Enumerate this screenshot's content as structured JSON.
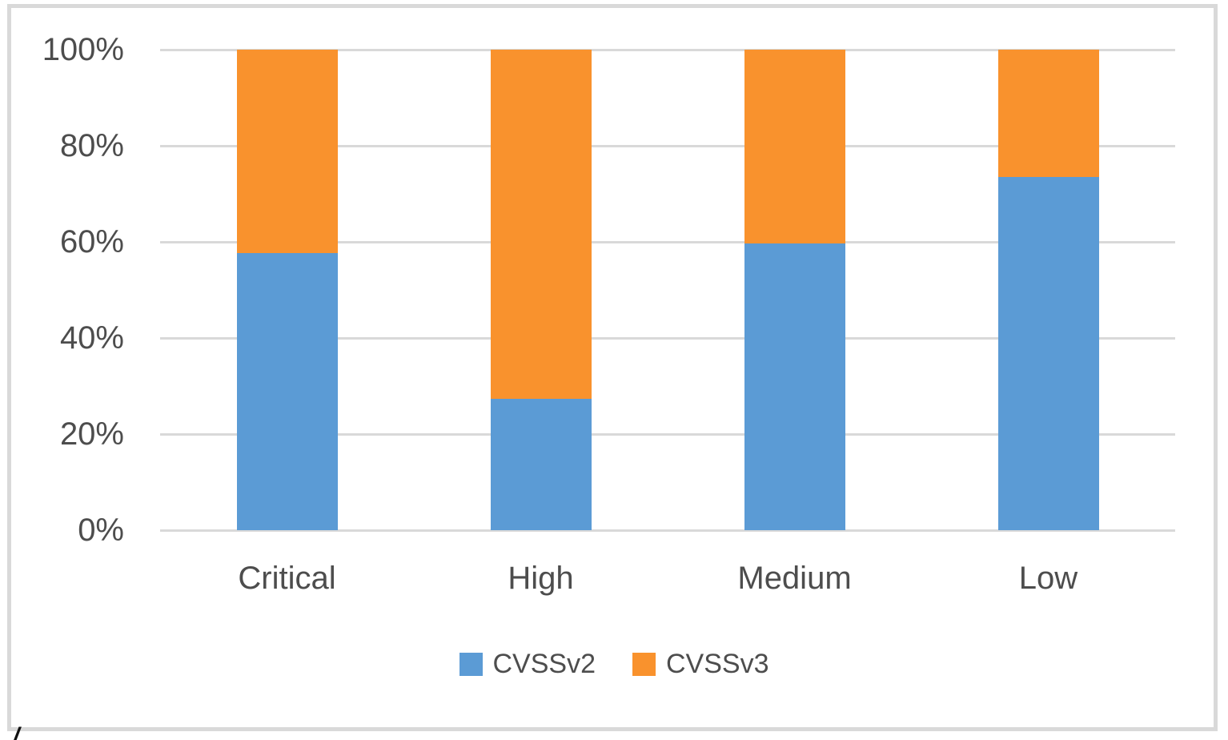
{
  "page": {
    "background": "#ffffff",
    "border_color": "#d9d9d9",
    "corner_mark": "/"
  },
  "chart_data": {
    "type": "bar",
    "subtype": "stacked-100-percent",
    "title": "",
    "xlabel": "",
    "ylabel": "",
    "categories": [
      "Critical",
      "High",
      "Medium",
      "Low"
    ],
    "series": [
      {
        "name": "CVSSv2",
        "color": "#5B9BD5",
        "values": [
          57.7,
          27.3,
          59.7,
          73.5
        ]
      },
      {
        "name": "CVSSv3",
        "color": "#F9922D",
        "values": [
          42.3,
          72.7,
          40.3,
          26.5
        ]
      }
    ],
    "ylim": [
      0,
      100
    ],
    "yticks": [
      "0%",
      "20%",
      "40%",
      "60%",
      "80%",
      "100%"
    ],
    "grid": true,
    "gridline_color": "#d9d9d9",
    "text_color": "#4d4d4d",
    "legend_position": "bottom"
  }
}
